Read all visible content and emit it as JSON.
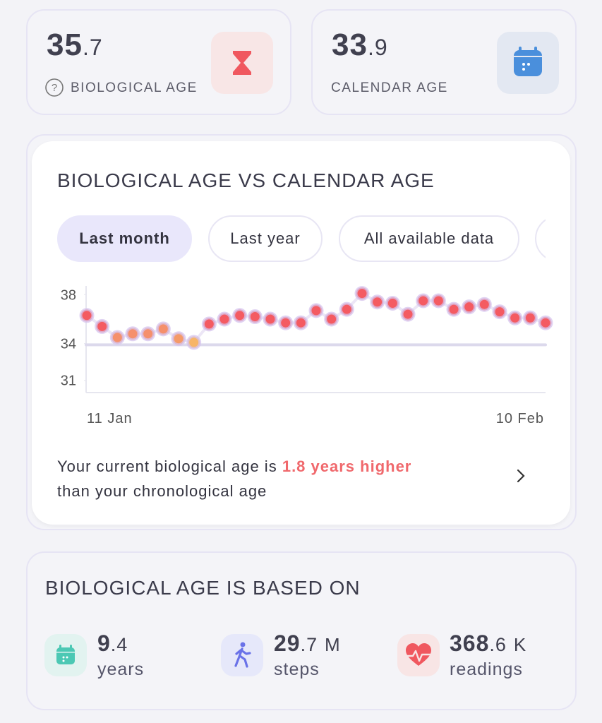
{
  "cards": [
    {
      "value_whole": "35",
      "value_fraction": ".7",
      "label": "BIOLOGICAL AGE"
    },
    {
      "value_whole": "33",
      "value_fraction": ".9",
      "label": "CALENDAR AGE"
    }
  ],
  "chips": [
    "Last month",
    "Last year",
    "All available data"
  ],
  "chart_data": {
    "type": "scatter",
    "title": "BIOLOGICAL AGE VS CALENDAR AGE",
    "categories": [
      "11 Jan",
      null,
      null,
      null,
      null,
      null,
      null,
      null,
      null,
      null,
      null,
      null,
      null,
      null,
      null,
      null,
      null,
      null,
      null,
      null,
      null,
      null,
      null,
      null,
      null,
      null,
      null,
      null,
      null,
      null,
      "10 Feb"
    ],
    "series": [
      {
        "values": [
          36.3,
          35.4,
          34.5,
          34.8,
          34.8,
          35.2,
          34.4,
          34.1,
          35.6,
          36.0,
          36.3,
          36.2,
          36.0,
          35.7,
          35.7,
          36.7,
          36.0,
          36.8,
          38.1,
          37.4,
          37.3,
          36.4,
          37.5,
          37.5,
          36.8,
          37.0,
          37.2,
          36.6,
          36.1,
          36.1,
          35.7
        ],
        "colors": [
          "#f45b62",
          "#f45b62",
          "#f5906c",
          "#f5906c",
          "#f5906c",
          "#f5906c",
          "#f59a68",
          "#f7b567",
          "#f45b62",
          "#f45b62",
          "#f45b62",
          "#f45b62",
          "#f45b62",
          "#f45b62",
          "#f45b62",
          "#f45b62",
          "#f45b62",
          "#f45b62",
          "#f45b62",
          "#f45b62",
          "#f45b62",
          "#f45b62",
          "#f45b62",
          "#f45b62",
          "#f45b62",
          "#f45b62",
          "#f45b62",
          "#f45b62",
          "#f45b62",
          "#f45b62",
          "#f45b62"
        ]
      }
    ],
    "reference_line": 33.9,
    "ylim": [
      30,
      39
    ],
    "yticks": [
      31,
      34,
      38
    ]
  },
  "summary": {
    "prefix": "Your current biological age is",
    "highlight": "1.8 years higher",
    "suffix": "than your chronological age"
  },
  "based_on": {
    "title": "BIOLOGICAL AGE IS BASED ON",
    "stats": [
      {
        "value_whole": "9",
        "value_fraction": ".4",
        "label": "years"
      },
      {
        "value_whole": "29",
        "value_fraction": ".7",
        "unit": "M",
        "label": "steps"
      },
      {
        "value_whole": "368",
        "value_fraction": ".6",
        "unit": "K",
        "label": "readings"
      }
    ]
  }
}
